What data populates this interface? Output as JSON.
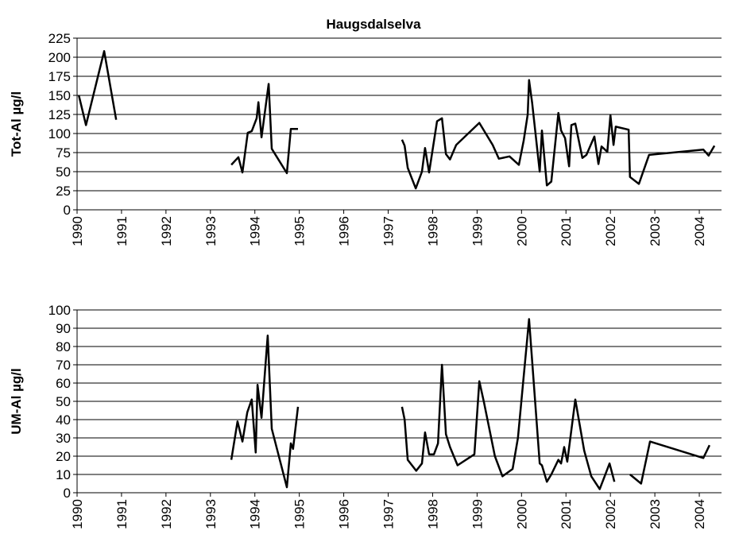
{
  "chart_data": [
    {
      "type": "line",
      "title": "Haugsdalselva",
      "y_label": "Tot-Al µg/l",
      "color": "#000000",
      "grid": true,
      "xlim": [
        1990,
        2004.5
      ],
      "xticks": [
        1990,
        1991,
        1992,
        1993,
        1994,
        1995,
        1996,
        1997,
        1998,
        1999,
        2000,
        2001,
        2002,
        2003,
        2004
      ],
      "ylim": [
        0,
        225
      ],
      "yticks": [
        0,
        25,
        50,
        75,
        100,
        125,
        150,
        175,
        200,
        225
      ],
      "x": [
        1990.04,
        1990.2,
        1990.61,
        1990.88,
        1992,
        1993.47,
        1993.63,
        1993.72,
        1993.84,
        1993.93,
        1994.04,
        1994.08,
        1994.15,
        1994.31,
        1994.38,
        1994.72,
        1994.81,
        1994.97,
        1996,
        1997.31,
        1997.37,
        1997.44,
        1997.62,
        1997.76,
        1997.83,
        1997.92,
        1998.1,
        1998.21,
        1998.3,
        1998.39,
        1998.53,
        1999.05,
        1999.35,
        1999.49,
        1999.73,
        1999.94,
        2000.05,
        2000.14,
        2000.17,
        2000.24,
        2000.41,
        2000.46,
        2000.57,
        2000.67,
        2000.83,
        2000.89,
        2000.98,
        2001.07,
        2001.12,
        2001.21,
        2001.37,
        2001.46,
        2001.64,
        2001.73,
        2001.8,
        2001.93,
        2002.0,
        2002.07,
        2002.12,
        2002.41,
        2002.44,
        2002.64,
        2002.87,
        2004.09,
        2004.21,
        2004.34
      ],
      "values": [
        150,
        111,
        208,
        118,
        null,
        59,
        69,
        49,
        101,
        103,
        120,
        141,
        95,
        165,
        80,
        48,
        106,
        106,
        null,
        92,
        84,
        55,
        28,
        50,
        81,
        49,
        116,
        120,
        73,
        66,
        85,
        114,
        85,
        67,
        70,
        59,
        91,
        125,
        170,
        140,
        50,
        104,
        32,
        37,
        127,
        104,
        94,
        57,
        111,
        113,
        68,
        72,
        96,
        60,
        83,
        76,
        124,
        85,
        109,
        105,
        43,
        34,
        72,
        79,
        71,
        84
      ]
    },
    {
      "type": "line",
      "y_label": "UM-Al µg/l",
      "color": "#000000",
      "grid": true,
      "xlim": [
        1990,
        2004.5
      ],
      "xticks": [
        1990,
        1991,
        1992,
        1993,
        1994,
        1995,
        1996,
        1997,
        1998,
        1999,
        2000,
        2001,
        2002,
        2003,
        2004
      ],
      "ylim": [
        0,
        100
      ],
      "yticks": [
        0,
        10,
        20,
        30,
        40,
        50,
        60,
        70,
        80,
        90,
        100
      ],
      "x": [
        1993.47,
        1993.61,
        1993.72,
        1993.83,
        1993.93,
        1994.02,
        1994.06,
        1994.15,
        1994.29,
        1994.38,
        1994.72,
        1994.81,
        1994.86,
        1994.97,
        1996,
        1997.31,
        1997.37,
        1997.44,
        1997.63,
        1997.76,
        1997.83,
        1997.92,
        1998.03,
        1998.12,
        1998.21,
        1998.3,
        1998.39,
        1998.56,
        1998.94,
        1999.05,
        1999.15,
        1999.4,
        1999.57,
        1999.8,
        1999.92,
        2000.17,
        2000.24,
        2000.41,
        2000.46,
        2000.57,
        2000.67,
        2000.83,
        2000.89,
        2000.96,
        2001.03,
        2001.21,
        2001.41,
        2001.57,
        2001.76,
        2001.98,
        2002.09,
        2002.25,
        2002.44,
        2002.69,
        2002.89,
        2004.09,
        2004.23
      ],
      "values": [
        18,
        39,
        28,
        44,
        51,
        22,
        59,
        41,
        86,
        35,
        3,
        27,
        24,
        47,
        null,
        47,
        40,
        18,
        12,
        16,
        33,
        21,
        21,
        27,
        70,
        32,
        25,
        15,
        21,
        61,
        50,
        20,
        9,
        13,
        30,
        95,
        72,
        16,
        15,
        6,
        10,
        18,
        16,
        25,
        17,
        51,
        23,
        9,
        2,
        16,
        6,
        null,
        10,
        5,
        28,
        19,
        26
      ]
    }
  ]
}
